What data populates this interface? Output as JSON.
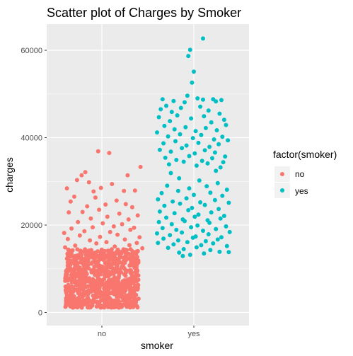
{
  "chart_data": {
    "type": "scatter",
    "title": "Scatter plot of Charges by Smoker",
    "xlabel": "smoker",
    "ylabel": "charges",
    "x_categories": [
      "no",
      "yes"
    ],
    "y_ticks": [
      0,
      20000,
      40000,
      60000
    ],
    "y_tick_labels": [
      "0",
      "20000",
      "40000",
      "60000"
    ],
    "ylim": [
      -3000,
      66000
    ],
    "grid": true,
    "legend": {
      "title": "factor(smoker)",
      "position": "right",
      "entries": [
        {
          "label": "no",
          "color": "#F8766D"
        },
        {
          "label": "yes",
          "color": "#00BFC4"
        }
      ]
    },
    "series": [
      {
        "name": "no",
        "category": "no",
        "color": "#F8766D",
        "dense_band": {
          "y_min": 1100,
          "y_max": 14500,
          "count": 900
        },
        "jitter_width": 0.4,
        "values": [
          [
            0.96,
            36900
          ],
          [
            1.08,
            36500
          ],
          [
            0.82,
            32100
          ],
          [
            0.78,
            31400
          ],
          [
            1.28,
            31400
          ],
          [
            1.42,
            33300
          ],
          [
            0.73,
            30300
          ],
          [
            0.86,
            29800
          ],
          [
            1.11,
            29400
          ],
          [
            0.99,
            28500
          ],
          [
            0.62,
            28400
          ],
          [
            0.91,
            27700
          ],
          [
            1.24,
            27800
          ],
          [
            1.36,
            27900
          ],
          [
            0.7,
            26500
          ],
          [
            0.93,
            26300
          ],
          [
            1.16,
            25600
          ],
          [
            1.26,
            24800
          ],
          [
            0.66,
            25400
          ],
          [
            0.84,
            24300
          ],
          [
            1.04,
            24700
          ],
          [
            1.33,
            24100
          ],
          [
            0.79,
            23000
          ],
          [
            0.97,
            23500
          ],
          [
            1.19,
            22600
          ],
          [
            1.39,
            22200
          ],
          [
            0.64,
            22900
          ],
          [
            0.88,
            21500
          ],
          [
            1.06,
            21900
          ],
          [
            1.29,
            21300
          ],
          [
            0.74,
            20700
          ],
          [
            1.01,
            20400
          ],
          [
            1.22,
            20200
          ],
          [
            0.9,
            19500
          ],
          [
            1.13,
            19700
          ],
          [
            0.67,
            19200
          ],
          [
            1.35,
            19400
          ],
          [
            0.81,
            18600
          ],
          [
            1.09,
            18400
          ],
          [
            1.31,
            18900
          ],
          [
            0.59,
            18200
          ],
          [
            0.76,
            17600
          ],
          [
            0.98,
            17300
          ],
          [
            1.17,
            17800
          ],
          [
            1.41,
            17200
          ],
          [
            0.63,
            16800
          ],
          [
            0.87,
            16500
          ],
          [
            1.05,
            16100
          ],
          [
            1.25,
            16700
          ],
          [
            1.38,
            15900
          ],
          [
            0.71,
            15300
          ],
          [
            0.94,
            15800
          ],
          [
            1.14,
            15100
          ],
          [
            1.3,
            15400
          ],
          [
            0.6,
            14900
          ],
          [
            1.44,
            14700
          ]
        ]
      },
      {
        "name": "yes",
        "category": "yes",
        "color": "#00BFC4",
        "jitter_width": 0.4,
        "values": [
          [
            1.96,
            60100
          ],
          [
            1.94,
            58700
          ],
          [
            2.1,
            62700
          ],
          [
            2.0,
            55100
          ],
          [
            1.98,
            52600
          ],
          [
            2.1,
            48700
          ],
          [
            1.93,
            49600
          ],
          [
            1.9,
            48100
          ],
          [
            2.04,
            49000
          ],
          [
            1.66,
            48800
          ],
          [
            1.7,
            47300
          ],
          [
            1.78,
            48400
          ],
          [
            2.21,
            48800
          ],
          [
            2.24,
            48300
          ],
          [
            2.3,
            48600
          ],
          [
            1.64,
            46500
          ],
          [
            1.76,
            45900
          ],
          [
            1.86,
            46800
          ],
          [
            2.07,
            47100
          ],
          [
            2.16,
            46200
          ],
          [
            2.28,
            45500
          ],
          [
            1.62,
            44700
          ],
          [
            1.74,
            43800
          ],
          [
            1.82,
            45100
          ],
          [
            1.97,
            44400
          ],
          [
            2.11,
            44900
          ],
          [
            2.19,
            43500
          ],
          [
            2.33,
            44100
          ],
          [
            1.68,
            42700
          ],
          [
            1.79,
            41900
          ],
          [
            1.91,
            42400
          ],
          [
            2.02,
            41500
          ],
          [
            2.13,
            42200
          ],
          [
            2.25,
            41700
          ],
          [
            2.35,
            42900
          ],
          [
            1.6,
            41200
          ],
          [
            1.72,
            40300
          ],
          [
            1.85,
            40800
          ],
          [
            1.99,
            39900
          ],
          [
            2.08,
            40600
          ],
          [
            2.22,
            39600
          ],
          [
            2.31,
            40200
          ],
          [
            1.67,
            38700
          ],
          [
            1.8,
            39200
          ],
          [
            1.92,
            38200
          ],
          [
            2.05,
            38800
          ],
          [
            2.17,
            37900
          ],
          [
            2.27,
            38500
          ],
          [
            2.37,
            39400
          ],
          [
            1.63,
            37200
          ],
          [
            1.75,
            36800
          ],
          [
            1.87,
            37600
          ],
          [
            2.01,
            36400
          ],
          [
            2.12,
            37100
          ],
          [
            2.23,
            36600
          ],
          [
            2.34,
            35700
          ],
          [
            1.69,
            35400
          ],
          [
            1.81,
            34900
          ],
          [
            1.95,
            35800
          ],
          [
            2.09,
            34700
          ],
          [
            2.2,
            35300
          ],
          [
            2.32,
            34400
          ],
          [
            1.73,
            33900
          ],
          [
            1.89,
            34500
          ],
          [
            2.03,
            33600
          ],
          [
            2.15,
            34100
          ],
          [
            2.29,
            33200
          ],
          [
            1.84,
            30700
          ],
          [
            2.06,
            30200
          ],
          [
            2.26,
            29600
          ],
          [
            1.71,
            29000
          ],
          [
            1.95,
            28400
          ],
          [
            2.14,
            28900
          ],
          [
            2.36,
            28100
          ],
          [
            1.65,
            27300
          ],
          [
            1.83,
            27800
          ],
          [
            2.0,
            26900
          ],
          [
            2.18,
            27400
          ],
          [
            2.31,
            26700
          ],
          [
            1.61,
            25900
          ],
          [
            1.77,
            25400
          ],
          [
            1.92,
            26100
          ],
          [
            2.07,
            25200
          ],
          [
            2.23,
            25700
          ],
          [
            2.38,
            25100
          ],
          [
            1.68,
            24400
          ],
          [
            1.85,
            24900
          ],
          [
            1.98,
            23900
          ],
          [
            2.12,
            24600
          ],
          [
            2.27,
            23700
          ],
          [
            1.63,
            23100
          ],
          [
            1.79,
            22700
          ],
          [
            1.94,
            23400
          ],
          [
            2.05,
            22400
          ],
          [
            2.19,
            22900
          ],
          [
            2.33,
            22100
          ],
          [
            1.7,
            21700
          ],
          [
            1.88,
            21300
          ],
          [
            2.01,
            21900
          ],
          [
            2.15,
            21100
          ],
          [
            2.29,
            21500
          ],
          [
            1.62,
            20700
          ],
          [
            1.76,
            20200
          ],
          [
            1.9,
            20900
          ],
          [
            2.04,
            19900
          ],
          [
            2.17,
            20500
          ],
          [
            2.35,
            19700
          ],
          [
            1.66,
            19300
          ],
          [
            1.81,
            18900
          ],
          [
            1.97,
            19500
          ],
          [
            2.1,
            18700
          ],
          [
            2.24,
            19100
          ],
          [
            2.39,
            18400
          ],
          [
            1.6,
            18100
          ],
          [
            1.74,
            17700
          ],
          [
            1.87,
            18300
          ],
          [
            2.02,
            17400
          ],
          [
            2.16,
            17900
          ],
          [
            2.3,
            17200
          ],
          [
            1.67,
            16900
          ],
          [
            1.83,
            16500
          ],
          [
            1.99,
            17100
          ],
          [
            2.13,
            16300
          ],
          [
            2.26,
            16700
          ],
          [
            1.61,
            15900
          ],
          [
            1.78,
            15600
          ],
          [
            1.93,
            16100
          ],
          [
            2.08,
            15400
          ],
          [
            2.21,
            15800
          ],
          [
            2.36,
            15200
          ],
          [
            1.72,
            14800
          ],
          [
            1.89,
            14500
          ],
          [
            2.03,
            14900
          ],
          [
            2.18,
            14300
          ],
          [
            1.84,
            13700
          ],
          [
            1.96,
            13200
          ],
          [
            2.11,
            13500
          ],
          [
            2.28,
            13900
          ],
          [
            2.38,
            13800
          ],
          [
            1.75,
            31900
          ],
          [
            2.24,
            32400
          ],
          [
            1.88,
            12900
          ]
        ]
      }
    ]
  }
}
